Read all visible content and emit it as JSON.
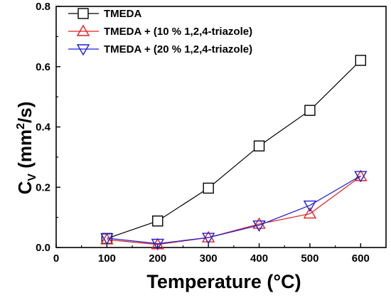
{
  "chart_data": {
    "type": "line",
    "xlabel": "Temperature (°C)",
    "ylabel": {
      "main": "C",
      "sub": "V",
      "unit_pre": " (mm",
      "unit_sup": "2",
      "unit_post": "/s)"
    },
    "x": [
      100,
      200,
      300,
      400,
      500,
      600
    ],
    "xlim": [
      0,
      650
    ],
    "ylim": [
      0,
      0.8
    ],
    "xticks": [
      "0",
      "100",
      "200",
      "300",
      "400",
      "500",
      "600"
    ],
    "yticks": [
      "0.0",
      "0.2",
      "0.4",
      "0.6",
      "0.8"
    ],
    "grid": false,
    "legend_position": "top-left",
    "series": [
      {
        "name": "TMEDA",
        "marker": "square",
        "color": "#000000",
        "values": [
          0.03,
          0.088,
          0.197,
          0.337,
          0.455,
          0.621
        ]
      },
      {
        "name": "TMEDA + (10 % 1,2,4-triazole)",
        "marker": "triangle-up",
        "color": "#e02020",
        "values": [
          0.026,
          0.01,
          0.033,
          0.078,
          0.112,
          0.236
        ]
      },
      {
        "name": "TMEDA + (20 % 1,2,4-triazole)",
        "marker": "triangle-down",
        "color": "#1f1fd0",
        "values": [
          0.031,
          0.013,
          0.033,
          0.074,
          0.14,
          0.238
        ]
      }
    ]
  }
}
